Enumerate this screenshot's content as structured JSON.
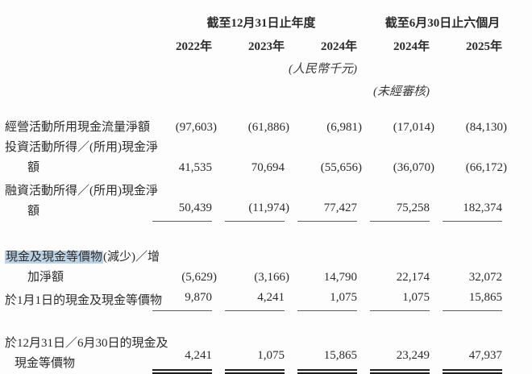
{
  "page": {
    "background": "#fdfdfd",
    "text_color": "#2b2b2b",
    "highlight_color": "#bcd3e6"
  },
  "header": {
    "group1": "截至12月31日止年度",
    "group2": "截至6月30日止六個月",
    "years": [
      "2022年",
      "2023年",
      "2024年",
      "2024年",
      "2025年"
    ],
    "unit_note": "(人民幣千元)",
    "unaudited_note": "(未經審核)"
  },
  "rows": [
    {
      "name": "operating-cash-flow",
      "label_lines": [
        "經營活動所用現金流量淨額"
      ],
      "values": [
        "(97,603)",
        "(61,886)",
        "(6,981)",
        "(17,014)",
        "(84,130)"
      ],
      "rule": "none"
    },
    {
      "name": "investing-cash-flow",
      "label_lines": [
        "投資活動所得／(所用)現金淨",
        "額"
      ],
      "values": [
        "41,535",
        "70,694",
        "(55,656)",
        "(36,070)",
        "(66,172)"
      ],
      "rule": "none"
    },
    {
      "name": "financing-cash-flow",
      "label_lines": [
        "融資活動所得／(所用)現金淨",
        "額"
      ],
      "values": [
        "50,439",
        "(11,974)",
        "77,427",
        "75,258",
        "182,374"
      ],
      "rule": "single"
    },
    {
      "name": "net-change-in-cash",
      "label_highlight": "現金及現金等價物",
      "label_lines": [
        "(減少)／增",
        "加淨額"
      ],
      "values": [
        "(5,629)",
        "(3,166)",
        "14,790",
        "22,174",
        "32,072"
      ],
      "rule": "none"
    },
    {
      "name": "cash-at-beginning",
      "label_lines": [
        "於1月1日的現金及現金等價物"
      ],
      "values": [
        "9,870",
        "4,241",
        "1,075",
        "1,075",
        "15,865"
      ],
      "rule": "single"
    },
    {
      "name": "cash-at-end",
      "label_lines": [
        "於12月31日／6月30日的現金及",
        "現金等價物"
      ],
      "values": [
        "4,241",
        "1,075",
        "15,865",
        "23,249",
        "47,937"
      ],
      "rule": "double"
    }
  ]
}
